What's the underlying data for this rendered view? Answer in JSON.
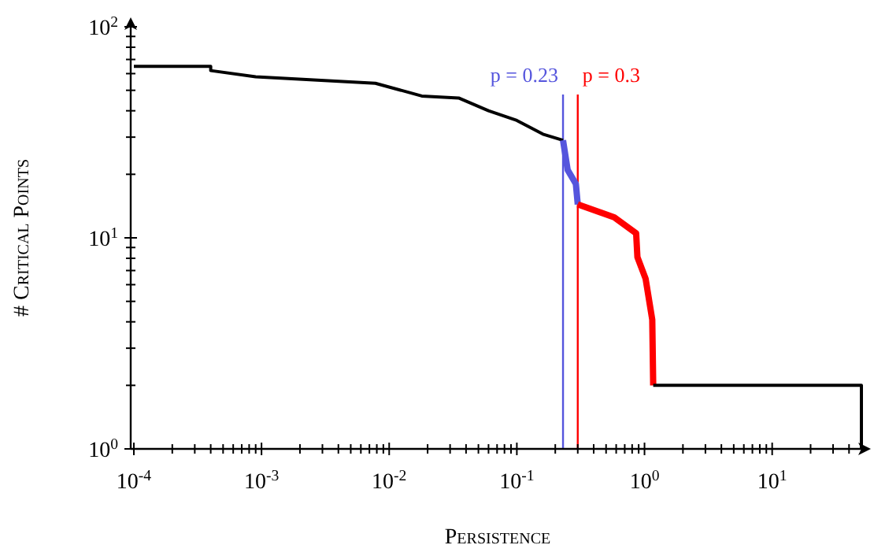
{
  "chart_data": {
    "type": "line",
    "xlabel": "Persistence",
    "ylabel": "# Critical Points",
    "log": "xy",
    "grid": false,
    "xlim": [
      0.0001,
      50
    ],
    "ylim": [
      1,
      100
    ],
    "xticks": [
      {
        "value": 0.0001,
        "label": "10$^{-4}$"
      },
      {
        "value": 0.0002,
        "label": null
      },
      {
        "value": 0.0003,
        "label": null
      },
      {
        "value": 0.0004,
        "label": null
      },
      {
        "value": 0.0005,
        "label": null
      },
      {
        "value": 0.0006,
        "label": null
      },
      {
        "value": 0.0007,
        "label": null
      },
      {
        "value": 0.0008,
        "label": null
      },
      {
        "value": 0.0009,
        "label": null
      },
      {
        "value": 0.001,
        "label": "10$^{-3}$"
      },
      {
        "value": 0.002,
        "label": null
      },
      {
        "value": 0.003,
        "label": null
      },
      {
        "value": 0.004,
        "label": null
      },
      {
        "value": 0.005,
        "label": null
      },
      {
        "value": 0.006,
        "label": null
      },
      {
        "value": 0.007,
        "label": null
      },
      {
        "value": 0.008,
        "label": null
      },
      {
        "value": 0.009,
        "label": null
      },
      {
        "value": 0.01,
        "label": "10$^{-2}$"
      },
      {
        "value": 0.02,
        "label": null
      },
      {
        "value": 0.03,
        "label": null
      },
      {
        "value": 0.04,
        "label": null
      },
      {
        "value": 0.05,
        "label": null
      },
      {
        "value": 0.06,
        "label": null
      },
      {
        "value": 0.07,
        "label": null
      },
      {
        "value": 0.08,
        "label": null
      },
      {
        "value": 0.09,
        "label": null
      },
      {
        "value": 0.1,
        "label": "10$^{-1}$"
      },
      {
        "value": 0.2,
        "label": null
      },
      {
        "value": 0.3,
        "label": null
      },
      {
        "value": 0.4,
        "label": null
      },
      {
        "value": 0.5,
        "label": null
      },
      {
        "value": 0.6,
        "label": null
      },
      {
        "value": 0.7,
        "label": null
      },
      {
        "value": 0.8,
        "label": null
      },
      {
        "value": 0.9,
        "label": null
      },
      {
        "value": 1,
        "label": "10$^{0}$"
      },
      {
        "value": 2,
        "label": null
      },
      {
        "value": 3,
        "label": null
      },
      {
        "value": 4,
        "label": null
      },
      {
        "value": 5,
        "label": null
      },
      {
        "value": 6,
        "label": null
      },
      {
        "value": 7,
        "label": null
      },
      {
        "value": 8,
        "label": null
      },
      {
        "value": 9,
        "label": null
      },
      {
        "value": 10,
        "label": "10$^{1}$"
      },
      {
        "value": 20,
        "label": null
      },
      {
        "value": 30,
        "label": null
      },
      {
        "value": 40,
        "label": null
      }
    ],
    "yticks": [
      {
        "value": 1,
        "label": "10$^{0}$"
      },
      {
        "value": 2,
        "label": null
      },
      {
        "value": 3,
        "label": null
      },
      {
        "value": 4,
        "label": null
      },
      {
        "value": 5,
        "label": null
      },
      {
        "value": 6,
        "label": null
      },
      {
        "value": 7,
        "label": null
      },
      {
        "value": 8,
        "label": null
      },
      {
        "value": 9,
        "label": null
      },
      {
        "value": 10,
        "label": "10$^{1}$"
      },
      {
        "value": 20,
        "label": null
      },
      {
        "value": 30,
        "label": null
      },
      {
        "value": 40,
        "label": null
      },
      {
        "value": 50,
        "label": null
      },
      {
        "value": 60,
        "label": null
      },
      {
        "value": 70,
        "label": null
      },
      {
        "value": 80,
        "label": null
      },
      {
        "value": 90,
        "label": null
      },
      {
        "value": 100,
        "label": "10$^{2}$"
      }
    ],
    "series": [
      {
        "color": "#000000",
        "x": [
          0.0001,
          0.0004,
          0.0004,
          0.0009,
          0.0078,
          0.018,
          0.035,
          0.06,
          0.1,
          0.16,
          0.23
        ],
        "values": [
          65,
          65,
          62,
          58,
          54,
          47,
          46,
          40,
          36,
          31,
          29
        ]
      },
      {
        "color": "#5555dd",
        "x": [
          0.23,
          0.25,
          0.29,
          0.3
        ],
        "values": [
          29,
          21,
          18,
          14.4
        ]
      },
      {
        "color": "#ff0000",
        "x": [
          0.3,
          0.58,
          0.86,
          0.88,
          1.02,
          1.15,
          1.17
        ],
        "values": [
          14.4,
          12.5,
          10.5,
          8.1,
          6.4,
          4.1,
          2
        ]
      },
      {
        "color": "#000000",
        "x": [
          1.17,
          50,
          50
        ],
        "values": [
          2,
          2,
          1
        ]
      }
    ],
    "ref_lines": [
      {
        "axis": "x",
        "value": 0.23,
        "label": "p = 0.23",
        "color": "#5555dd"
      },
      {
        "axis": "x",
        "value": 0.3,
        "label": "p = 0.3",
        "color": "#ff0000"
      }
    ]
  }
}
